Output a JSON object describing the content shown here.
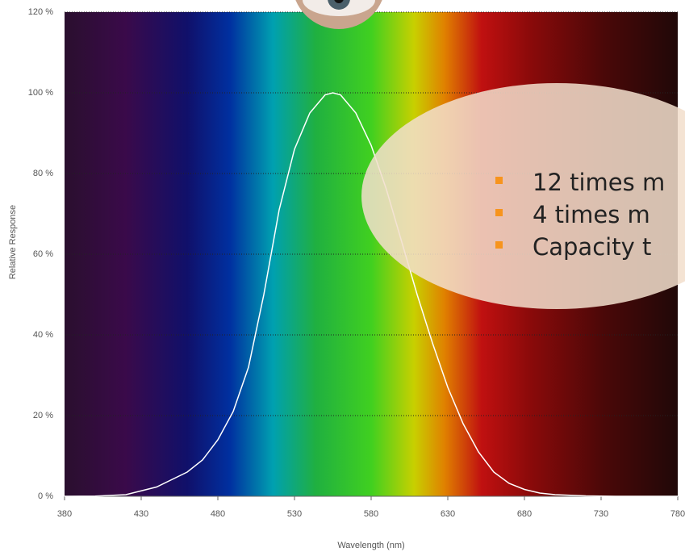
{
  "chart_data": {
    "type": "line",
    "x_label": "Wavelength (nm)",
    "y_label": "Relative Response",
    "x": [
      380,
      400,
      420,
      440,
      460,
      470,
      480,
      490,
      500,
      510,
      520,
      530,
      540,
      550,
      555,
      560,
      570,
      580,
      590,
      600,
      610,
      620,
      630,
      640,
      650,
      660,
      670,
      680,
      690,
      700,
      720,
      740,
      780
    ],
    "series": [
      {
        "color": "#ffffff",
        "values": [
          0,
          0.04,
          0.4,
          2.3,
          6,
          9,
          14,
          21,
          32,
          50,
          71,
          86,
          95,
          99.5,
          100,
          99.5,
          95,
          87,
          76,
          63,
          50,
          38,
          27,
          18,
          11,
          6,
          3.2,
          1.7,
          0.8,
          0.4,
          0.1,
          0,
          0
        ]
      }
    ],
    "xlim": [
      380,
      780
    ],
    "ylim": [
      0,
      120
    ],
    "xticks": [
      380,
      430,
      480,
      530,
      580,
      630,
      680,
      730,
      780
    ],
    "yticks": [
      {
        "value": 0,
        "label": "0 %"
      },
      {
        "value": 20,
        "label": "20 %"
      },
      {
        "value": 40,
        "label": "40 %"
      },
      {
        "value": 60,
        "label": "60 %"
      },
      {
        "value": 80,
        "label": "80 %"
      },
      {
        "value": 100,
        "label": "100 %"
      },
      {
        "value": 120,
        "label": "120 %"
      }
    ],
    "grid": true
  },
  "overlay": {
    "bullets": [
      "12 times m",
      "4 times m",
      "Capacity t"
    ]
  }
}
